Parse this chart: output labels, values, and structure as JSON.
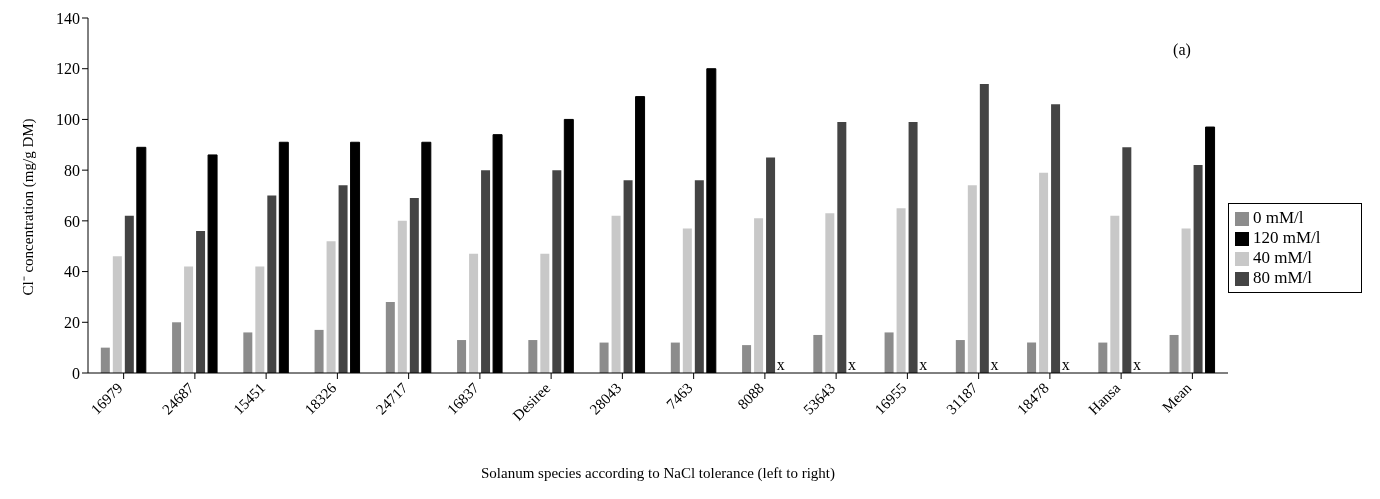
{
  "chart_data": {
    "type": "bar",
    "xlabel": "Solanum species according to NaCl tolerance (left to right)",
    "ylabel": "Cl⁻ concentration (mg/g DM)",
    "categories": [
      "16979",
      "24687",
      "15451",
      "18326",
      "24717",
      "16837",
      "Desiree",
      "28043",
      "7463",
      "8088",
      "53643",
      "16955",
      "31187",
      "18478",
      "Hansa",
      "Mean"
    ],
    "series": [
      {
        "name": "0 mM/l",
        "color": "#8c8c8c",
        "values": [
          10,
          20,
          16,
          17,
          28,
          13,
          13,
          12,
          12,
          11,
          15,
          16,
          13,
          12,
          12,
          15
        ]
      },
      {
        "name": "40 mM/l",
        "color": "#c8c8c8",
        "values": [
          46,
          42,
          42,
          52,
          60,
          47,
          47,
          62,
          57,
          61,
          63,
          65,
          74,
          79,
          62,
          57
        ]
      },
      {
        "name": "80 mM/l",
        "color": "#444444",
        "values": [
          62,
          56,
          70,
          74,
          69,
          80,
          80,
          76,
          76,
          85,
          99,
          99,
          114,
          106,
          89,
          82
        ]
      },
      {
        "name": "120 mM/l",
        "color": "#000000",
        "values": [
          89,
          86,
          91,
          91,
          91,
          94,
          100,
          109,
          120,
          null,
          null,
          null,
          null,
          null,
          null,
          97
        ]
      }
    ],
    "ylim": [
      0,
      140
    ],
    "yticks": [
      0,
      20,
      40,
      60,
      80,
      100,
      120,
      140
    ],
    "grid": false,
    "legend": "right",
    "annotations": [
      "(a)",
      {
        "text": "x",
        "x": "8088",
        "y": 0
      },
      {
        "text": "x",
        "x": "53643",
        "y": 0
      },
      {
        "text": "x",
        "x": "16955",
        "y": 0
      },
      {
        "text": "x",
        "x": "31187",
        "y": 0
      },
      {
        "text": "x",
        "x": "18478",
        "y": 0
      },
      {
        "text": "x",
        "x": "Hansa",
        "y": 0
      }
    ]
  }
}
